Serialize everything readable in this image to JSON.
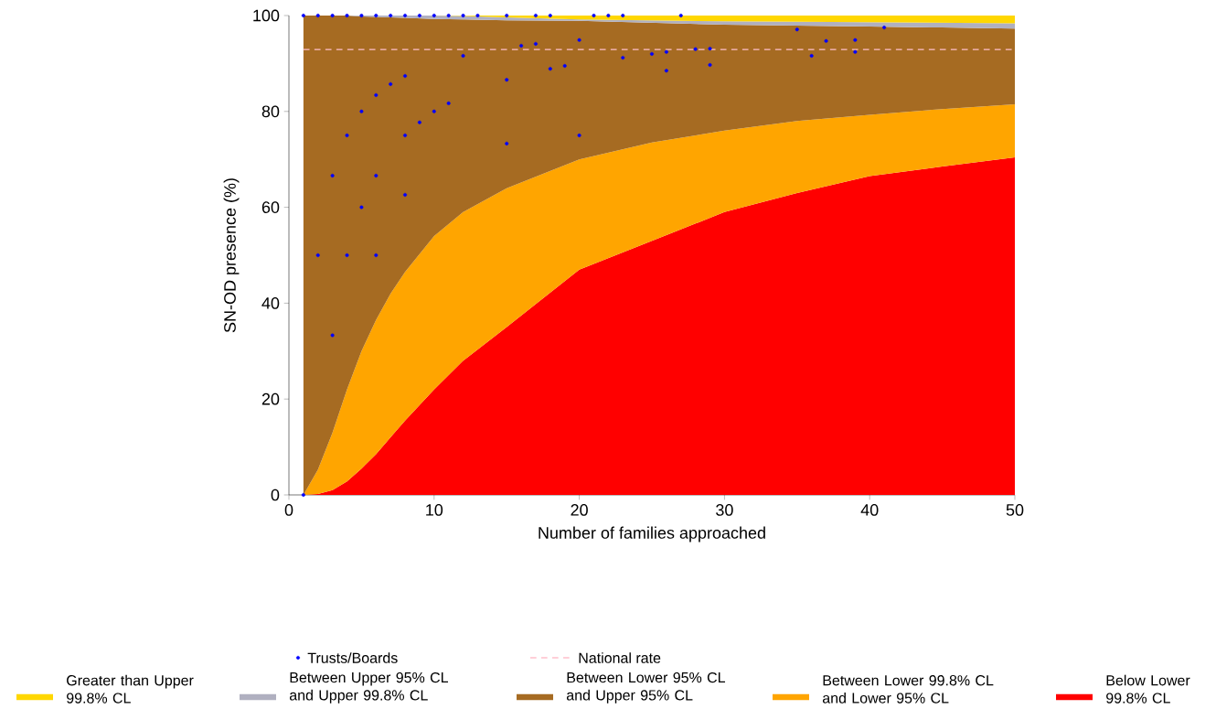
{
  "chart_data": {
    "type": "area",
    "stacked": true,
    "xlabel": "Number of families approached",
    "ylabel": "SN-OD presence (%)",
    "x": [
      1,
      2,
      3,
      4,
      5,
      6,
      7,
      8,
      10,
      12,
      15,
      20,
      25,
      30,
      35,
      40,
      45,
      50
    ],
    "series": [
      {
        "name": "Below Lower 99.8% CL",
        "color": "#ff0000",
        "values": [
          0,
          0.2,
          1,
          2.8,
          5.5,
          8.5,
          12,
          15.5,
          22,
          28,
          35,
          47,
          53,
          59,
          63,
          66.5,
          68.5,
          70.4
        ]
      },
      {
        "name": "Between Lower 99.8% CL and Lower 95% CL",
        "color": "#ffa500",
        "values": [
          0,
          5.1,
          12,
          19.2,
          24.5,
          28,
          30,
          31,
          32,
          31,
          29,
          23,
          20.5,
          17,
          15,
          12.8,
          12,
          11.1
        ]
      },
      {
        "name": "Between Lower 95% CL and Upper 95% CL",
        "color": "#a66b22",
        "values": [
          100,
          94.7,
          87,
          78,
          69.8,
          63.2,
          57.6,
          53,
          45.3,
          40.2,
          35,
          28.9,
          25,
          22.1,
          19.9,
          18.4,
          17,
          15.8
        ]
      },
      {
        "name": "Between Upper 95% CL and Upper 99.8% CL",
        "color": "#b0b0c0",
        "values": [
          0,
          0,
          0,
          0,
          0.2,
          0.3,
          0.4,
          0.5,
          0.7,
          0.7,
          0.6,
          0.3,
          0.5,
          0.7,
          0.8,
          0.9,
          1,
          1.1
        ]
      },
      {
        "name": "Greater than Upper 99.8% CL",
        "color": "#ffd700",
        "values": [
          0,
          0,
          0,
          0,
          0,
          0,
          0,
          0,
          0,
          0.1,
          0.4,
          0.8,
          1,
          1.2,
          1.3,
          1.4,
          1.5,
          1.6
        ]
      },
      {
        "name": "Trusts/Boards",
        "type": "scatter",
        "color": "#0000ff",
        "marker": "circle",
        "x": [
          1,
          2,
          3,
          4,
          5,
          6,
          7,
          8,
          9,
          10,
          11,
          12,
          13,
          15,
          17,
          18,
          21,
          22,
          23,
          27,
          1,
          16,
          17,
          20,
          12,
          23,
          25,
          18,
          19,
          8,
          7,
          6,
          5,
          15,
          11,
          10,
          9,
          4,
          8,
          20,
          15,
          3,
          6,
          8,
          5,
          2,
          4,
          6,
          3,
          26,
          26,
          28,
          29,
          29,
          35,
          36,
          37,
          39,
          39,
          41
        ],
        "values": [
          100,
          100,
          100,
          100,
          100,
          100,
          100,
          100,
          100,
          100,
          100,
          100,
          100,
          100,
          100,
          100,
          100,
          100,
          100,
          100,
          0,
          93.7,
          94.1,
          94.9,
          91.6,
          91.2,
          92,
          88.9,
          89.5,
          87.4,
          85.7,
          83.4,
          80,
          86.6,
          81.7,
          80,
          77.7,
          75,
          75,
          75,
          73.3,
          66.6,
          66.6,
          62.6,
          60,
          50,
          50,
          50,
          33.3,
          92.4,
          88.5,
          93,
          93.1,
          89.7,
          97.1,
          91.6,
          94.7,
          94.9,
          92.4,
          97.5
        ]
      }
    ],
    "ref_lines": [
      {
        "axis": "y",
        "value": 92.9,
        "label": "National rate",
        "color": "#ffc0cb",
        "line_style": "dashed"
      }
    ],
    "xlim": [
      0,
      50
    ],
    "xticks": [
      0,
      10,
      20,
      30,
      40,
      50
    ],
    "ylim": [
      0,
      100
    ],
    "yticks": [
      0,
      20,
      40,
      60,
      80,
      100
    ],
    "grid": false,
    "legend": "bottom"
  }
}
